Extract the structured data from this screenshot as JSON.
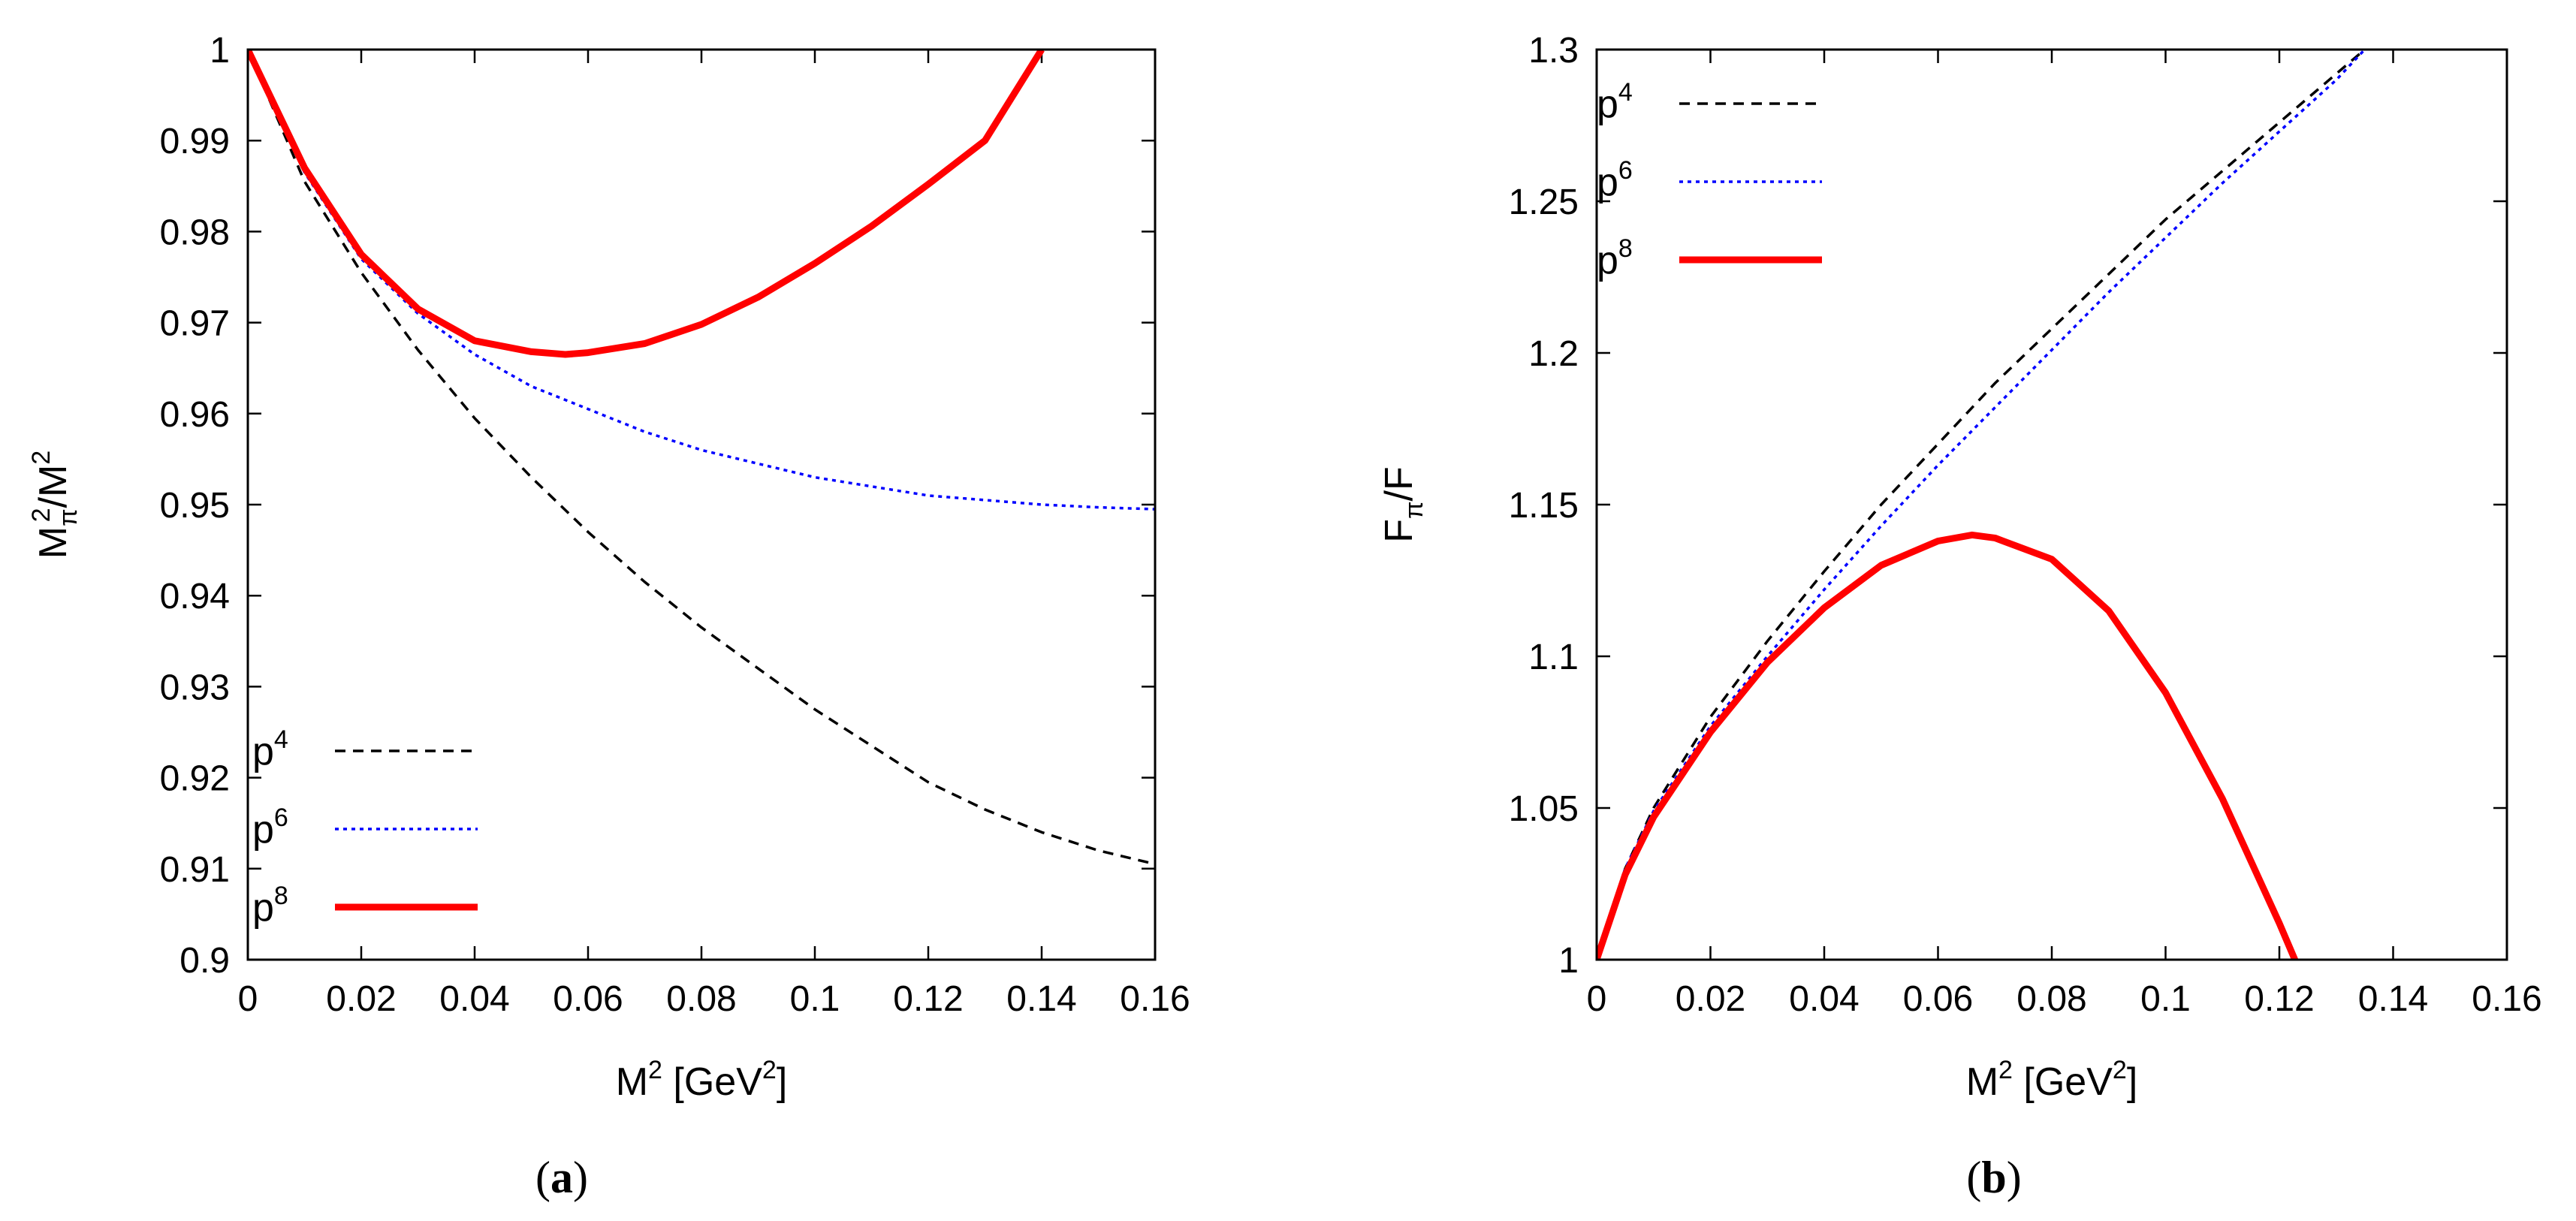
{
  "chart_data": [
    {
      "type": "line",
      "panel_label": "a",
      "xlabel": "M",
      "xlabel_sup": "2",
      "xlabel_unit": "[GeV",
      "xlabel_unit_sup": "2",
      "xlabel_close": "]",
      "ylabel_base1": "M",
      "ylabel_sub1": "π",
      "ylabel_sup1": "2",
      "ylabel_mid": "/M",
      "ylabel_sup2": "2",
      "xlim": [
        0,
        0.16
      ],
      "ylim": [
        0.9,
        1.0
      ],
      "xticks": [
        0,
        0.02,
        0.04,
        0.06,
        0.08,
        0.1,
        0.12,
        0.14,
        0.16
      ],
      "xtick_labels": [
        "0",
        "0.02",
        "0.04",
        "0.06",
        "0.08",
        "0.1",
        "0.12",
        "0.14",
        "0.16"
      ],
      "yticks": [
        0.9,
        0.91,
        0.92,
        0.93,
        0.94,
        0.95,
        0.96,
        0.97,
        0.98,
        0.99,
        1.0
      ],
      "ytick_labels": [
        "0.9",
        "0.91",
        "0.92",
        "0.93",
        "0.94",
        "0.95",
        "0.96",
        "0.97",
        "0.98",
        "0.99",
        "1"
      ],
      "legend_position": "bottom-left",
      "series": [
        {
          "name": "p",
          "sup": "4",
          "style": "dashed",
          "color": "#000000",
          "x": [
            0,
            0.01,
            0.02,
            0.03,
            0.04,
            0.05,
            0.06,
            0.07,
            0.08,
            0.09,
            0.1,
            0.11,
            0.12,
            0.13,
            0.14,
            0.15,
            0.16
          ],
          "y": [
            1.0,
            0.9855,
            0.9755,
            0.967,
            0.9595,
            0.953,
            0.947,
            0.9415,
            0.9365,
            0.932,
            0.9275,
            0.9235,
            0.9195,
            0.9165,
            0.914,
            0.912,
            0.9105
          ]
        },
        {
          "name": "p",
          "sup": "6",
          "style": "dotted",
          "color": "#0000ff",
          "x": [
            0,
            0.01,
            0.02,
            0.03,
            0.04,
            0.05,
            0.06,
            0.07,
            0.08,
            0.09,
            0.1,
            0.11,
            0.12,
            0.13,
            0.14,
            0.15,
            0.16
          ],
          "y": [
            1.0,
            0.9865,
            0.977,
            0.971,
            0.9665,
            0.963,
            0.9605,
            0.958,
            0.956,
            0.9545,
            0.953,
            0.952,
            0.951,
            0.9505,
            0.95,
            0.9497,
            0.9495
          ]
        },
        {
          "name": "p",
          "sup": "8",
          "style": "solid",
          "color": "#ff0000",
          "x": [
            0,
            0.01,
            0.02,
            0.03,
            0.04,
            0.05,
            0.056,
            0.06,
            0.07,
            0.08,
            0.09,
            0.1,
            0.11,
            0.12,
            0.13,
            0.14
          ],
          "y": [
            1.0,
            0.987,
            0.9775,
            0.9715,
            0.968,
            0.9668,
            0.9665,
            0.9667,
            0.9677,
            0.9698,
            0.9728,
            0.9765,
            0.9806,
            0.9852,
            0.99,
            1.0
          ]
        }
      ]
    },
    {
      "type": "line",
      "panel_label": "b",
      "xlabel": "M",
      "xlabel_sup": "2",
      "xlabel_unit": "[GeV",
      "xlabel_unit_sup": "2",
      "xlabel_close": "]",
      "ylabel_base1": "F",
      "ylabel_sub1": "π",
      "ylabel_mid": "/F",
      "xlim": [
        0,
        0.16
      ],
      "ylim": [
        1.0,
        1.3
      ],
      "xticks": [
        0,
        0.02,
        0.04,
        0.06,
        0.08,
        0.1,
        0.12,
        0.14,
        0.16
      ],
      "xtick_labels": [
        "0",
        "0.02",
        "0.04",
        "0.06",
        "0.08",
        "0.1",
        "0.12",
        "0.14",
        "0.16"
      ],
      "yticks": [
        1.0,
        1.05,
        1.1,
        1.15,
        1.2,
        1.25,
        1.3
      ],
      "ytick_labels": [
        "1",
        "1.05",
        "1.1",
        "1.15",
        "1.2",
        "1.25",
        "1.3"
      ],
      "legend_position": "top-left",
      "series": [
        {
          "name": "p",
          "sup": "4",
          "style": "dashed",
          "color": "#000000",
          "x": [
            0,
            0.005,
            0.01,
            0.02,
            0.03,
            0.04,
            0.05,
            0.06,
            0.07,
            0.08,
            0.09,
            0.1,
            0.11,
            0.12,
            0.13,
            0.135
          ],
          "y": [
            1.0,
            1.03,
            1.05,
            1.08,
            1.105,
            1.128,
            1.15,
            1.17,
            1.19,
            1.208,
            1.226,
            1.244,
            1.26,
            1.276,
            1.292,
            1.3
          ]
        },
        {
          "name": "p",
          "sup": "6",
          "style": "dotted",
          "color": "#0000ff",
          "x": [
            0,
            0.005,
            0.01,
            0.02,
            0.03,
            0.04,
            0.05,
            0.06,
            0.07,
            0.08,
            0.09,
            0.1,
            0.11,
            0.12,
            0.13,
            0.135
          ],
          "y": [
            1.0,
            1.03,
            1.049,
            1.077,
            1.1,
            1.122,
            1.143,
            1.163,
            1.182,
            1.201,
            1.22,
            1.238,
            1.256,
            1.273,
            1.29,
            1.3
          ]
        },
        {
          "name": "p",
          "sup": "8",
          "style": "solid",
          "color": "#ff0000",
          "x": [
            0,
            0.005,
            0.01,
            0.02,
            0.03,
            0.04,
            0.05,
            0.06,
            0.066,
            0.07,
            0.08,
            0.09,
            0.1,
            0.11,
            0.12,
            0.125
          ],
          "y": [
            1.0,
            1.028,
            1.047,
            1.075,
            1.098,
            1.116,
            1.13,
            1.138,
            1.14,
            1.139,
            1.132,
            1.115,
            1.088,
            1.053,
            1.012,
            0.99
          ]
        }
      ]
    }
  ]
}
